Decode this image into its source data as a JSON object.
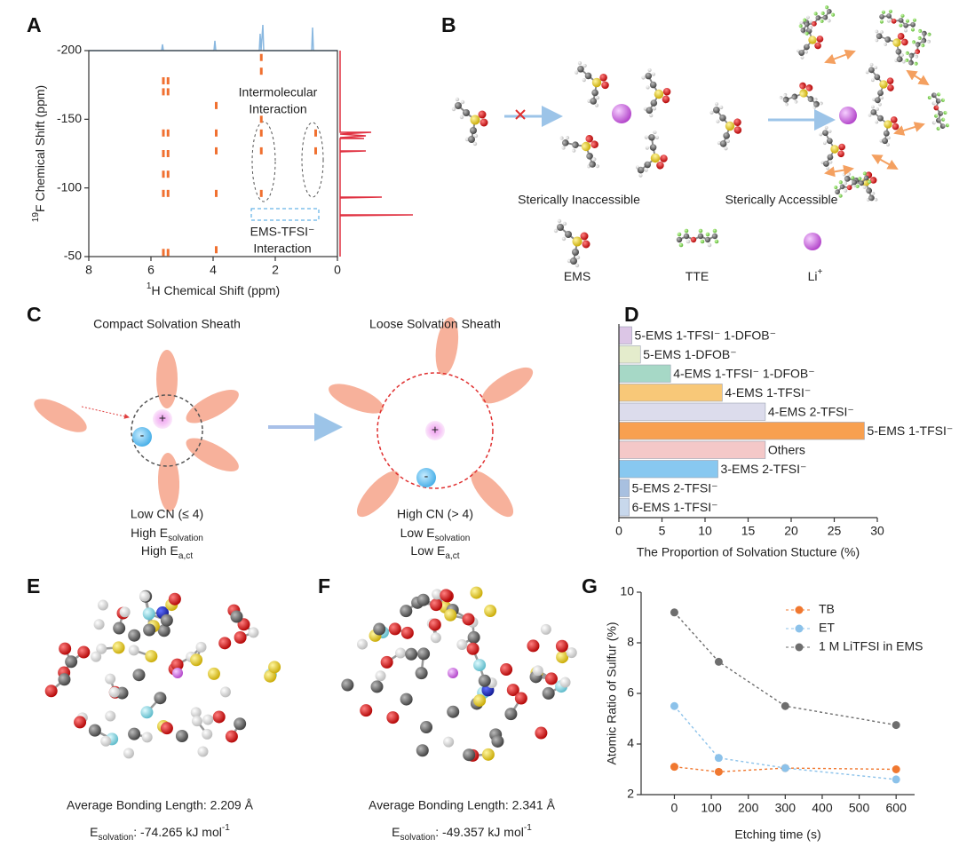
{
  "panel_labels": [
    "A",
    "B",
    "C",
    "D",
    "E",
    "F",
    "G"
  ],
  "chart_data": [
    {
      "type": "scatter",
      "xlabel_sup": "1",
      "xlabel": "H Chemical Shift (ppm)",
      "ylabel_sup": "19",
      "ylabel": "F Chemical Shift (ppm)",
      "xlim": [
        8,
        0
      ],
      "ylim": [
        -50,
        -200
      ],
      "xticks": [
        8,
        6,
        4,
        2,
        0
      ],
      "yticks": [
        -200,
        -150,
        -100,
        -50
      ],
      "color": "#f07030",
      "x": [
        5.6,
        5.45,
        5.6,
        5.45,
        5.6,
        5.45,
        5.6,
        5.45,
        5.6,
        5.45,
        5.6,
        5.45,
        5.6,
        5.45,
        3.9,
        3.9,
        3.9,
        3.9,
        3.9,
        2.45,
        2.45,
        2.45,
        2.45,
        2.45,
        2.45,
        0.7,
        0.7
      ],
      "values": [
        -178,
        -178,
        -170,
        -170,
        -140,
        -140,
        -125,
        -125,
        -110,
        -110,
        -96,
        -96,
        -53,
        -53,
        -160,
        -140,
        -127,
        -96,
        -55,
        -195,
        -185,
        -150,
        -140,
        -127,
        -96,
        -140,
        -127
      ],
      "annotations": [
        [
          "Intermolecular",
          "Interaction"
        ],
        [
          "EMS-TFSI⁻",
          "Interaction"
        ]
      ]
    },
    {
      "type": "bar",
      "orientation": "horizontal",
      "xlabel": "The Proportion of Solvation Stucture (%)",
      "categories": [
        "5-EMS 1-TFSI⁻ 1-DFOB⁻",
        "5-EMS 1-DFOB⁻",
        "4-EMS 1-TFSI⁻ 1-DFOB⁻",
        "4-EMS 1-TFSI⁻",
        "4-EMS 2-TFSI⁻",
        "5-EMS 1-TFSI⁻",
        "Others",
        "3-EMS 2-TFSI⁻",
        "5-EMS 2-TFSI⁻",
        "6-EMS 1-TFSI⁻"
      ],
      "values": [
        1.5,
        2.5,
        6,
        12,
        17,
        28.5,
        17,
        11.5,
        1.2,
        1.2
      ],
      "colors": [
        "#dcc6e6",
        "#e4eccc",
        "#a6d8c6",
        "#f8c878",
        "#dcdcec",
        "#f8a050",
        "#f4c8c8",
        "#88c8f0",
        "#a8c0e0",
        "#c8d8ec"
      ],
      "xlim": [
        0,
        30
      ],
      "xticks": [
        0,
        5,
        10,
        15,
        20,
        25,
        30
      ]
    },
    {
      "type": "line",
      "xlabel": "Etching time (s)",
      "ylabel": "Atomic Ratio of Sulfur (%)",
      "x": [
        0,
        120,
        300,
        600
      ],
      "xlim": [
        -90,
        650
      ],
      "xticks": [
        0,
        100,
        200,
        300,
        400,
        500,
        600
      ],
      "ylim": [
        2,
        10
      ],
      "yticks": [
        2,
        4,
        6,
        8,
        10
      ],
      "legend": "upper right",
      "linestyle": "dashed",
      "series": [
        {
          "name": "TB",
          "color": "#f07830",
          "values": [
            3.1,
            2.9,
            3.05,
            3.0
          ]
        },
        {
          "name": "ET",
          "color": "#8cc2ea",
          "values": [
            5.5,
            3.45,
            3.05,
            2.6
          ]
        },
        {
          "name": "1 M LiTFSI in EMS",
          "color": "#6e6e6e",
          "values": [
            9.2,
            7.25,
            5.5,
            4.75
          ]
        }
      ]
    }
  ],
  "diagram_b": {
    "inaccessible": "Sterically Inaccessible",
    "accessible": "Sterically Accessible",
    "legend": [
      {
        "text": "EMS"
      },
      {
        "text": "TTE"
      },
      {
        "text": "Li",
        "sup": "+"
      }
    ]
  },
  "diagram_c": {
    "charges": [
      "+",
      "-"
    ],
    "left": {
      "title": "Compact Solvation Sheath",
      "cn": "Low CN (≤ 4)",
      "lines": [
        {
          "text": "High E",
          "sub": "solvation"
        },
        {
          "text": "High E",
          "sub": "a,ct"
        }
      ]
    },
    "right": {
      "title": "Loose Solvation Sheath",
      "cn": "High CN (> 4)",
      "lines": [
        {
          "text": "Low E",
          "sub": "solvation"
        },
        {
          "text": "Low E",
          "sub": "a,ct"
        }
      ]
    }
  },
  "structures": [
    {
      "bond": "Average Bonding Length: 2.209 Å",
      "energy": {
        "text": "E",
        "sub": "solvation",
        "value": ": -74.265 kJ mol",
        "sup": "-1"
      }
    },
    {
      "bond": "Average Bonding Length: 2.341 Å",
      "energy": {
        "text": "E",
        "sub": "solvation",
        "value": ": -49.357 kJ mol",
        "sup": "-1"
      }
    }
  ]
}
